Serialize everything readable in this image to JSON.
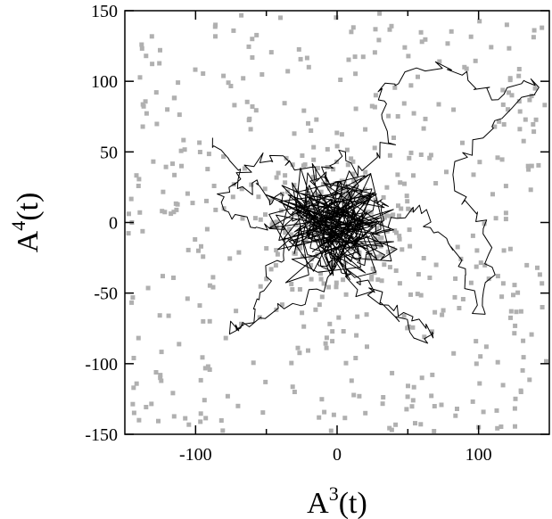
{
  "chart_data": {
    "type": "scatter",
    "xlabel": {
      "base": "A",
      "sup": "3",
      "suffix": "(t)"
    },
    "ylabel": {
      "base": "A",
      "sup": "4",
      "suffix": "(t)"
    },
    "xlim": [
      -150,
      150
    ],
    "ylim": [
      -150,
      150
    ],
    "xticks": [
      -100,
      0,
      100
    ],
    "xminor": [
      -50,
      50
    ],
    "yticks": [
      -150,
      -100,
      -50,
      0,
      50,
      100,
      150
    ],
    "grid": false,
    "scatter_color": "#b0b0b0",
    "line_color": "#000000",
    "scatter_note": "background cloud of ~600 grey square points spread roughly uniformly over the plotting region, denser near the origin",
    "scatter_sample": [
      [
        -135,
        118
      ],
      [
        -120,
        80
      ],
      [
        -110,
        40
      ],
      [
        -98,
        -20
      ],
      [
        -90,
        -70
      ],
      [
        -125,
        -110
      ],
      [
        -140,
        -140
      ],
      [
        -60,
        130
      ],
      [
        -40,
        145
      ],
      [
        -20,
        110
      ],
      [
        10,
        135
      ],
      [
        30,
        148
      ],
      [
        60,
        128
      ],
      [
        90,
        110
      ],
      [
        120,
        140
      ],
      [
        140,
        95
      ],
      [
        -70,
        -130
      ],
      [
        -30,
        -120
      ],
      [
        20,
        -135
      ],
      [
        60,
        -110
      ],
      [
        100,
        -145
      ],
      [
        130,
        -120
      ],
      [
        145,
        -60
      ],
      [
        -80,
        10
      ],
      [
        -50,
        -40
      ],
      [
        40,
        60
      ],
      [
        70,
        -30
      ],
      [
        110,
        20
      ],
      [
        135,
        40
      ],
      [
        -145,
        0
      ]
    ],
    "trajectory": [
      [
        -88,
        60
      ],
      [
        -80,
        45
      ],
      [
        -72,
        38
      ],
      [
        -65,
        22
      ],
      [
        -55,
        30
      ],
      [
        -48,
        15
      ],
      [
        -40,
        20
      ],
      [
        -30,
        5
      ],
      [
        -22,
        12
      ],
      [
        -15,
        -5
      ],
      [
        -8,
        10
      ],
      [
        0,
        0
      ],
      [
        8,
        15
      ],
      [
        15,
        -8
      ],
      [
        22,
        10
      ],
      [
        30,
        20
      ],
      [
        35,
        5
      ],
      [
        28,
        -12
      ],
      [
        20,
        -25
      ],
      [
        10,
        -30
      ],
      [
        2,
        -20
      ],
      [
        -10,
        -35
      ],
      [
        -18,
        -20
      ],
      [
        -25,
        8
      ],
      [
        -15,
        25
      ],
      [
        -5,
        40
      ],
      [
        5,
        50
      ],
      [
        15,
        35
      ],
      [
        28,
        45
      ],
      [
        40,
        60
      ],
      [
        32,
        80
      ],
      [
        30,
        95
      ],
      [
        45,
        100
      ],
      [
        70,
        112
      ],
      [
        85,
        105
      ],
      [
        100,
        95
      ],
      [
        115,
        90
      ],
      [
        130,
        98
      ],
      [
        145,
        97
      ],
      [
        132,
        85
      ],
      [
        110,
        70
      ],
      [
        95,
        52
      ],
      [
        85,
        35
      ],
      [
        90,
        15
      ],
      [
        100,
        5
      ],
      [
        105,
        -15
      ],
      [
        108,
        -35
      ],
      [
        105,
        -55
      ],
      [
        100,
        -65
      ],
      [
        92,
        -40
      ],
      [
        85,
        -25
      ],
      [
        78,
        -10
      ],
      [
        65,
        0
      ],
      [
        55,
        10
      ],
      [
        45,
        5
      ],
      [
        30,
        -5
      ],
      [
        20,
        0
      ],
      [
        10,
        5
      ],
      [
        0,
        8
      ],
      [
        -10,
        2
      ],
      [
        -20,
        -10
      ],
      [
        -12,
        -25
      ],
      [
        0,
        -30
      ],
      [
        10,
        -42
      ],
      [
        25,
        -55
      ],
      [
        40,
        -62
      ],
      [
        55,
        -68
      ],
      [
        70,
        -78
      ],
      [
        62,
        -85
      ],
      [
        48,
        -72
      ],
      [
        38,
        -60
      ],
      [
        25,
        -48
      ],
      [
        15,
        -40
      ],
      [
        5,
        -28
      ],
      [
        -8,
        -18
      ],
      [
        -22,
        -8
      ],
      [
        -35,
        -15
      ],
      [
        -45,
        -30
      ],
      [
        -52,
        -45
      ],
      [
        -58,
        -62
      ],
      [
        -68,
        -72
      ],
      [
        -75,
        -75
      ],
      [
        -62,
        -70
      ],
      [
        -45,
        -62
      ],
      [
        -28,
        -58
      ],
      [
        -10,
        -45
      ],
      [
        0,
        -28
      ],
      [
        8,
        -12
      ],
      [
        16,
        4
      ],
      [
        10,
        18
      ],
      [
        0,
        25
      ],
      [
        -12,
        32
      ],
      [
        -25,
        38
      ],
      [
        -38,
        45
      ],
      [
        -50,
        48
      ],
      [
        -62,
        42
      ],
      [
        -72,
        30
      ],
      [
        -82,
        20
      ],
      [
        -75,
        8
      ],
      [
        -62,
        0
      ],
      [
        -48,
        -5
      ],
      [
        -35,
        2
      ],
      [
        -22,
        8
      ],
      [
        -10,
        15
      ],
      [
        0,
        6
      ],
      [
        5,
        -5
      ],
      [
        -2,
        -12
      ],
      [
        -14,
        -6
      ],
      [
        -20,
        4
      ],
      [
        -8,
        12
      ],
      [
        4,
        10
      ],
      [
        14,
        2
      ],
      [
        18,
        -10
      ],
      [
        10,
        -18
      ],
      [
        -4,
        -10
      ],
      [
        -12,
        0
      ],
      [
        -4,
        6
      ],
      [
        6,
        2
      ]
    ]
  }
}
